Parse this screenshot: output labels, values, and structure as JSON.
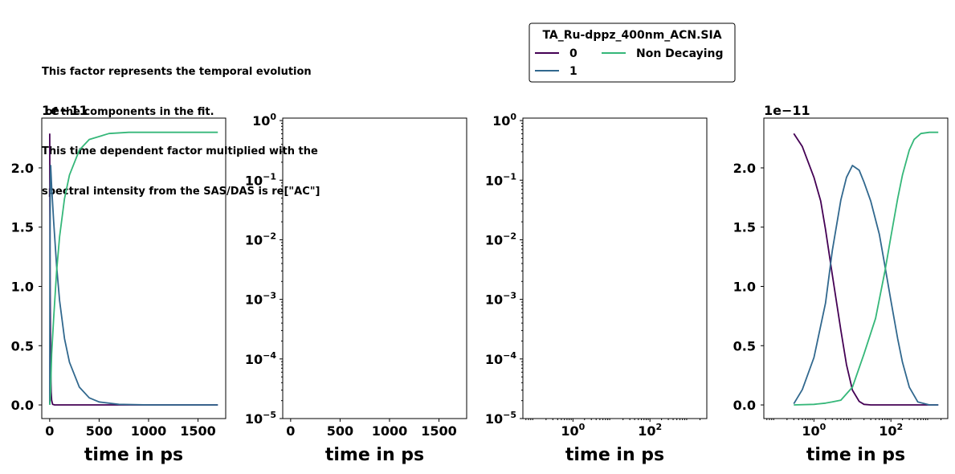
{
  "annotation": [
    "This factor represents the temporal evolution",
    " of the components in the fit.",
    "This time dependent factor multiplied with the",
    "spectral intensity from the SAS/DAS is re[\"AC\"]"
  ],
  "legend": {
    "title": "TA_Ru-dppz_400nm_ACN.SIA",
    "placement": "upper-center",
    "ncol": 2,
    "entries": [
      "0",
      "1",
      "Non Decaying"
    ]
  },
  "colors": {
    "0": "#440154",
    "1": "#31688e",
    "Non Decaying": "#35b779"
  },
  "chart_data": [
    {
      "type": "line",
      "xlabel": "time in ps",
      "ylabel": "",
      "xscale": "linear",
      "yscale": "linear",
      "xlim": [
        -80,
        1780
      ],
      "ylim": [
        -1.15e-12,
        2.42e-11
      ],
      "offset_text": "1e−11",
      "xticks": [
        0,
        500,
        1000,
        1500
      ],
      "xtick_labels": [
        "0",
        "500",
        "1000",
        "1500"
      ],
      "yticks": [
        0.0,
        5e-12,
        1e-11,
        1.5e-11,
        2e-11
      ],
      "ytick_labels": [
        "0.0",
        "0.5",
        "1.0",
        "1.5",
        "2.0"
      ],
      "series": [
        {
          "name": "0",
          "x": [
            0.1,
            2,
            5,
            10,
            15,
            20,
            30,
            50,
            100,
            300,
            700,
            1000,
            1700
          ],
          "y": [
            2.29e-11,
            1.66e-11,
            9.3e-12,
            3.3e-12,
            1.1e-12,
            4e-13,
            5e-14,
            0,
            0,
            0,
            0,
            0,
            0
          ]
        },
        {
          "name": "1",
          "x": [
            0.1,
            1,
            3,
            6,
            10,
            20,
            40,
            70,
            100,
            150,
            200,
            300,
            400,
            500,
            700,
            1000,
            1700
          ],
          "y": [
            1e-13,
            4e-12,
            1.3e-11,
            1.84e-11,
            2.02e-11,
            1.84e-11,
            1.55e-11,
            1.17e-11,
            8.8e-12,
            5.6e-12,
            3.6e-12,
            1.5e-12,
            6e-13,
            2.5e-13,
            5e-14,
            0,
            0
          ]
        },
        {
          "name": "Non Decaying",
          "x": [
            0.1,
            5,
            10,
            20,
            40,
            70,
            100,
            150,
            200,
            300,
            400,
            600,
            800,
            1700
          ],
          "y": [
            0,
            4e-13,
            1.5e-12,
            4.3e-12,
            7.3e-12,
            1.13e-11,
            1.42e-11,
            1.74e-11,
            1.94e-11,
            2.15e-11,
            2.24e-11,
            2.29e-11,
            2.3e-11,
            2.3e-11
          ]
        }
      ]
    },
    {
      "type": "line",
      "xlabel": "time in ps",
      "ylabel": "",
      "xscale": "linear",
      "yscale": "log",
      "xlim": [
        -80,
        1780
      ],
      "ylim": [
        1e-05,
        1.1
      ],
      "xticks": [
        0,
        500,
        1000,
        1500
      ],
      "xtick_labels": [
        "0",
        "500",
        "1000",
        "1500"
      ],
      "yticks": [
        1e-05,
        0.0001,
        0.001,
        0.01,
        0.1,
        1
      ],
      "ytick_bases": [
        "10",
        "10",
        "10",
        "10",
        "10",
        "10"
      ],
      "ytick_exps": [
        "−5",
        "−4",
        "−3",
        "−2",
        "−1",
        "0"
      ],
      "series": []
    },
    {
      "type": "line",
      "xlabel": "time in ps",
      "ylabel": "",
      "xscale": "log",
      "yscale": "log",
      "xlim": [
        0.05,
        3000
      ],
      "ylim": [
        1e-05,
        1.1
      ],
      "xticks": [
        1,
        100
      ],
      "xtick_bases": [
        "10",
        "10"
      ],
      "xtick_exps": [
        "0",
        "2"
      ],
      "yticks": [
        1e-05,
        0.0001,
        0.001,
        0.01,
        0.1,
        1
      ],
      "ytick_bases": [
        "10",
        "10",
        "10",
        "10",
        "10",
        "10"
      ],
      "ytick_exps": [
        "−5",
        "−4",
        "−3",
        "−2",
        "−1",
        "0"
      ],
      "series": []
    },
    {
      "type": "line",
      "xlabel": "time in ps",
      "ylabel": "",
      "xscale": "log",
      "yscale": "linear",
      "xlim": [
        0.05,
        3000
      ],
      "ylim": [
        -1.15e-12,
        2.42e-11
      ],
      "offset_text": "1e−11",
      "xticks": [
        1,
        100
      ],
      "xtick_bases": [
        "10",
        "10"
      ],
      "xtick_exps": [
        "0",
        "2"
      ],
      "yticks": [
        0.0,
        5e-12,
        1e-11,
        1.5e-11,
        2e-11
      ],
      "ytick_labels": [
        "0.0",
        "0.5",
        "1.0",
        "1.5",
        "2.0"
      ],
      "series": [
        {
          "name": "0",
          "x": [
            0.3,
            0.5,
            1,
            1.5,
            2,
            3,
            5,
            7,
            10,
            15,
            20,
            30,
            50,
            100,
            1000,
            1700
          ],
          "y": [
            2.29e-11,
            2.18e-11,
            1.92e-11,
            1.72e-11,
            1.48e-11,
            1.1e-11,
            6.3e-12,
            3.4e-12,
            1.25e-12,
            3e-13,
            5e-14,
            0,
            0,
            0,
            0,
            0
          ]
        },
        {
          "name": "1",
          "x": [
            0.3,
            0.5,
            1,
            2,
            3,
            5,
            7,
            10,
            15,
            20,
            30,
            50,
            70,
            100,
            150,
            200,
            300,
            500,
            1000,
            1700
          ],
          "y": [
            1e-13,
            1.3e-12,
            4e-12,
            8.6e-12,
            1.3e-11,
            1.73e-11,
            1.92e-11,
            2.02e-11,
            1.98e-11,
            1.88e-11,
            1.72e-11,
            1.44e-11,
            1.17e-11,
            8.8e-12,
            5.6e-12,
            3.6e-12,
            1.5e-12,
            2.5e-13,
            0,
            0
          ]
        },
        {
          "name": "Non Decaying",
          "x": [
            0.3,
            1,
            2,
            3,
            5,
            10,
            20,
            40,
            70,
            100,
            150,
            200,
            300,
            400,
            600,
            1000,
            1700
          ],
          "y": [
            0,
            5e-14,
            1.5e-13,
            2.5e-13,
            4e-13,
            1.5e-12,
            4.3e-12,
            7.3e-12,
            1.13e-11,
            1.42e-11,
            1.74e-11,
            1.94e-11,
            2.15e-11,
            2.24e-11,
            2.29e-11,
            2.3e-11,
            2.3e-11
          ]
        }
      ]
    }
  ]
}
